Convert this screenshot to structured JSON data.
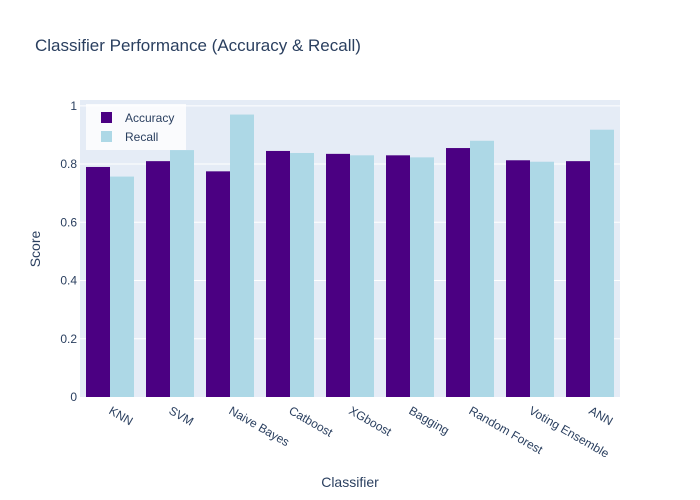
{
  "chart_data": {
    "type": "bar",
    "title": "Classifier Performance (Accuracy & Recall)",
    "xlabel": "Classifier",
    "ylabel": "Score",
    "categories": [
      "KNN",
      "SVM",
      "Naive Bayes",
      "Catboost",
      "XGboost",
      "Bagging",
      "Random Forest",
      "Voting Ensemble",
      "ANN"
    ],
    "series": [
      {
        "name": "Accuracy",
        "color": "#4b0082",
        "values": [
          0.79,
          0.81,
          0.775,
          0.845,
          0.835,
          0.83,
          0.855,
          0.813,
          0.81
        ]
      },
      {
        "name": "Recall",
        "color": "#add8e6",
        "values": [
          0.757,
          0.848,
          0.97,
          0.838,
          0.83,
          0.823,
          0.88,
          0.808,
          0.918
        ]
      }
    ],
    "yticks": [
      "0",
      "0.2",
      "0.4",
      "0.6",
      "0.8",
      "1"
    ],
    "ylim": [
      0,
      1.02
    ],
    "grid": true,
    "legend_position": "top-left",
    "plot_background": "#e5ecf6"
  }
}
